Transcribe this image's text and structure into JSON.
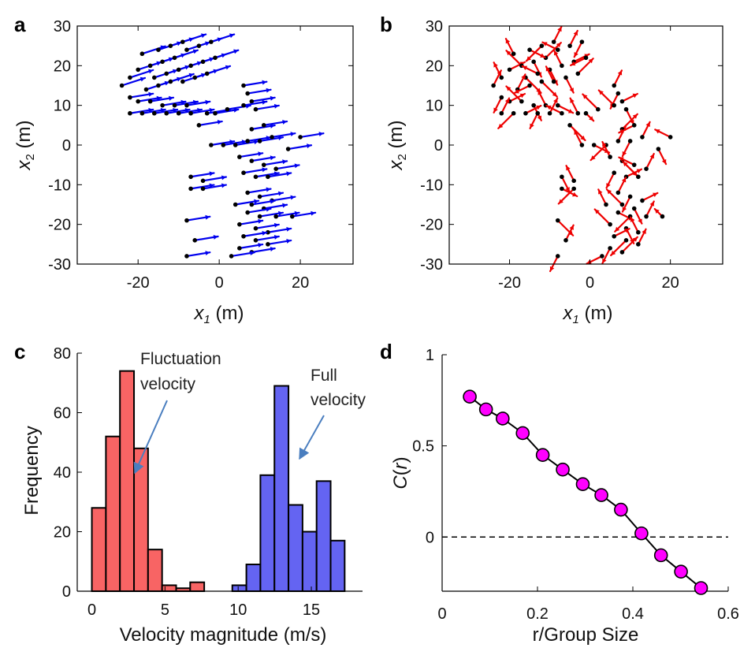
{
  "panels": {
    "a": "a",
    "b": "b",
    "c": "c",
    "d": "d"
  },
  "colors": {
    "full": "#0000ee",
    "fluct": "#ee0000",
    "hist_fluct": "#f86464",
    "hist_full": "#6464f2",
    "marker": "#ff00ff",
    "annotation_arrow": "#4a7ebf"
  },
  "chart_data": [
    {
      "id": "a",
      "type": "scatter",
      "xlabel": "x1 (m)",
      "ylabel": "x2 (m)",
      "xlim": [
        -35,
        33
      ],
      "ylim": [
        -30,
        30
      ],
      "xticks": [
        -20,
        0,
        20
      ],
      "yticks": [
        30,
        20,
        10,
        0,
        -10,
        -20,
        -30
      ],
      "arrow_color": "#0000ee",
      "points": [
        [
          -24,
          15,
          3,
          1
        ],
        [
          -22,
          17,
          3,
          1
        ],
        [
          -20,
          19,
          3,
          1
        ],
        [
          -17,
          20,
          3,
          1
        ],
        [
          -14,
          21,
          3,
          1
        ],
        [
          -11,
          22,
          3,
          1
        ],
        [
          -8,
          24,
          3,
          1
        ],
        [
          -5,
          25,
          3,
          1
        ],
        [
          -2,
          26,
          3,
          1
        ],
        [
          -19,
          23,
          3,
          1
        ],
        [
          -15,
          24,
          3,
          1
        ],
        [
          -12,
          25,
          3,
          1
        ],
        [
          -9,
          26,
          3,
          1
        ],
        [
          -16,
          17,
          3,
          1
        ],
        [
          -13,
          18,
          3,
          1
        ],
        [
          -10,
          19,
          3,
          1
        ],
        [
          -7,
          20,
          3,
          1
        ],
        [
          -4,
          21,
          3,
          1
        ],
        [
          -1,
          22,
          3,
          1
        ],
        [
          -18,
          14,
          3,
          1
        ],
        [
          -15,
          15,
          3,
          1
        ],
        [
          -12,
          16,
          3,
          1
        ],
        [
          -9,
          16,
          3,
          1
        ],
        [
          -6,
          17,
          3,
          1
        ],
        [
          -3,
          18,
          3,
          1
        ],
        [
          -22,
          12,
          3,
          0.5
        ],
        [
          -20,
          11,
          3,
          0.5
        ],
        [
          -17,
          11,
          3,
          0.5
        ],
        [
          -14,
          10,
          3,
          0.5
        ],
        [
          -11,
          10,
          3,
          0.5
        ],
        [
          -8,
          10,
          3,
          0.5
        ],
        [
          -22,
          8,
          3,
          0.5
        ],
        [
          -19,
          8,
          3,
          0.5
        ],
        [
          -16,
          8,
          3,
          0.5
        ],
        [
          -13,
          8,
          3,
          0.5
        ],
        [
          -10,
          8,
          3,
          0.5
        ],
        [
          -7,
          8,
          3,
          0.5
        ],
        [
          -5,
          5,
          3,
          0.5
        ],
        [
          -3,
          8,
          3,
          0.5
        ],
        [
          -1,
          8,
          3,
          0.5
        ],
        [
          2,
          9,
          3,
          0.5
        ],
        [
          6,
          15,
          3,
          0.5
        ],
        [
          7,
          13,
          3,
          0.5
        ],
        [
          8,
          11,
          3,
          0.5
        ],
        [
          6,
          10,
          3,
          0.5
        ],
        [
          9,
          9,
          3,
          0.5
        ],
        [
          -2,
          0,
          3,
          0.5
        ],
        [
          1,
          0,
          3,
          0.5
        ],
        [
          4,
          0,
          3,
          0.5
        ],
        [
          7,
          1,
          3,
          0.5
        ],
        [
          10,
          1,
          3,
          0.5
        ],
        [
          8,
          4,
          3,
          0.5
        ],
        [
          11,
          5,
          3,
          0.5
        ],
        [
          13,
          2,
          3,
          0.5
        ],
        [
          20,
          2,
          3,
          0.5
        ],
        [
          17,
          -1,
          3,
          0.5
        ],
        [
          5,
          -3,
          3,
          0.5
        ],
        [
          8,
          -4,
          3,
          0.5
        ],
        [
          11,
          -5,
          3,
          0.5
        ],
        [
          14,
          -6,
          3,
          0.5
        ],
        [
          6,
          -7,
          3,
          0.5
        ],
        [
          9,
          -8,
          3,
          0.5
        ],
        [
          12,
          -8,
          3,
          0.5
        ],
        [
          -7,
          -8,
          3,
          0.5
        ],
        [
          -4,
          -9,
          3,
          0.5
        ],
        [
          -7,
          -11,
          3,
          0.5
        ],
        [
          -4,
          -11,
          3,
          0.5
        ],
        [
          7,
          -12,
          3,
          0.5
        ],
        [
          10,
          -13,
          3,
          0.5
        ],
        [
          13,
          -14,
          3,
          0.5
        ],
        [
          8,
          -15,
          3,
          0.5
        ],
        [
          11,
          -16,
          3,
          0.5
        ],
        [
          4,
          -15,
          3,
          0.5
        ],
        [
          7,
          -17,
          3,
          0.5
        ],
        [
          10,
          -18,
          3,
          0.5
        ],
        [
          14,
          -18,
          3,
          0.5
        ],
        [
          18,
          -18,
          3,
          0.5
        ],
        [
          -8,
          -19,
          3,
          0.5
        ],
        [
          5,
          -20,
          3,
          0.5
        ],
        [
          9,
          -21,
          3,
          0.5
        ],
        [
          12,
          -22,
          3,
          0.5
        ],
        [
          6,
          -23,
          3,
          0.5
        ],
        [
          9,
          -24,
          3,
          0.5
        ],
        [
          12,
          -25,
          3,
          0.5
        ],
        [
          5,
          -26,
          3,
          0.5
        ],
        [
          8,
          -27,
          3,
          0.5
        ],
        [
          3,
          -28,
          3,
          0.5
        ],
        [
          -6,
          -24,
          3,
          0.5
        ],
        [
          -8,
          -28,
          3,
          0.5
        ]
      ]
    },
    {
      "id": "b",
      "type": "scatter",
      "xlabel": "x1 (m)",
      "ylabel": "x2 (m)",
      "xlim": [
        -35,
        33
      ],
      "ylim": [
        -30,
        30
      ],
      "xticks": [
        -20,
        0,
        20
      ],
      "yticks": [
        30,
        20,
        10,
        0,
        -10,
        -20,
        -30
      ],
      "arrow_color": "#ee0000",
      "points": [
        [
          -24,
          15,
          1,
          2
        ],
        [
          -22,
          17,
          -1,
          2
        ],
        [
          -20,
          19,
          2,
          1
        ],
        [
          -17,
          20,
          -2,
          2
        ],
        [
          -14,
          21,
          1,
          -2
        ],
        [
          -11,
          22,
          2,
          2
        ],
        [
          -8,
          24,
          -2,
          1
        ],
        [
          -5,
          25,
          1,
          2
        ],
        [
          -2,
          26,
          -1,
          -2
        ],
        [
          -19,
          23,
          -1,
          2
        ],
        [
          -15,
          24,
          2,
          -1
        ],
        [
          -12,
          25,
          -2,
          -2
        ],
        [
          -9,
          26,
          1,
          2
        ],
        [
          -16,
          17,
          2,
          -2
        ],
        [
          -13,
          18,
          -2,
          1
        ],
        [
          -10,
          19,
          1,
          -2
        ],
        [
          -7,
          20,
          -1,
          2
        ],
        [
          -4,
          21,
          2,
          1
        ],
        [
          -1,
          22,
          -2,
          -1
        ],
        [
          -18,
          14,
          1,
          2
        ],
        [
          -15,
          15,
          -2,
          -1
        ],
        [
          -12,
          16,
          2,
          -2
        ],
        [
          -9,
          16,
          -1,
          2
        ],
        [
          -6,
          17,
          1,
          -2
        ],
        [
          -3,
          18,
          2,
          2
        ],
        [
          -22,
          12,
          -1,
          -2
        ],
        [
          -20,
          11,
          2,
          1
        ],
        [
          -17,
          11,
          -2,
          2
        ],
        [
          -14,
          10,
          1,
          -2
        ],
        [
          -11,
          10,
          -1,
          2
        ],
        [
          -8,
          10,
          2,
          -1
        ],
        [
          -22,
          8,
          1,
          2
        ],
        [
          -19,
          8,
          -2,
          -2
        ],
        [
          -16,
          8,
          2,
          1
        ],
        [
          -13,
          8,
          -1,
          -2
        ],
        [
          -10,
          8,
          1,
          2
        ],
        [
          -7,
          8,
          -2,
          1
        ],
        [
          -5,
          5,
          2,
          -2
        ],
        [
          -3,
          8,
          -1,
          2
        ],
        [
          -1,
          8,
          1,
          -1
        ],
        [
          2,
          9,
          -2,
          2
        ],
        [
          6,
          15,
          1,
          2
        ],
        [
          7,
          13,
          -1,
          -2
        ],
        [
          8,
          11,
          2,
          1
        ],
        [
          6,
          10,
          -2,
          2
        ],
        [
          9,
          9,
          1,
          -2
        ],
        [
          -2,
          0,
          -1,
          2
        ],
        [
          1,
          0,
          2,
          -1
        ],
        [
          4,
          0,
          -2,
          -2
        ],
        [
          7,
          1,
          1,
          2
        ],
        [
          10,
          1,
          -1,
          -2
        ],
        [
          8,
          4,
          2,
          2
        ],
        [
          11,
          5,
          -2,
          -1
        ],
        [
          13,
          2,
          1,
          2
        ],
        [
          20,
          2,
          -2,
          1
        ],
        [
          17,
          -1,
          1,
          -2
        ],
        [
          5,
          -3,
          -1,
          2
        ],
        [
          8,
          -4,
          2,
          -2
        ],
        [
          11,
          -5,
          -2,
          1
        ],
        [
          14,
          -6,
          1,
          2
        ],
        [
          6,
          -7,
          -1,
          -2
        ],
        [
          9,
          -8,
          2,
          1
        ],
        [
          12,
          -8,
          -2,
          2
        ],
        [
          -7,
          -8,
          1,
          -2
        ],
        [
          -4,
          -9,
          -1,
          2
        ],
        [
          -7,
          -11,
          2,
          -1
        ],
        [
          -4,
          -11,
          -2,
          -2
        ],
        [
          7,
          -12,
          1,
          2
        ],
        [
          10,
          -13,
          -1,
          -2
        ],
        [
          13,
          -14,
          2,
          1
        ],
        [
          8,
          -15,
          -2,
          2
        ],
        [
          11,
          -16,
          1,
          -2
        ],
        [
          4,
          -15,
          -1,
          2
        ],
        [
          7,
          -17,
          2,
          -1
        ],
        [
          10,
          -18,
          -2,
          -2
        ],
        [
          14,
          -18,
          1,
          2
        ],
        [
          18,
          -18,
          -1,
          1
        ],
        [
          -8,
          -19,
          2,
          -2
        ],
        [
          5,
          -20,
          -2,
          2
        ],
        [
          9,
          -21,
          1,
          -2
        ],
        [
          12,
          -22,
          -1,
          2
        ],
        [
          6,
          -23,
          2,
          1
        ],
        [
          9,
          -24,
          -2,
          -2
        ],
        [
          12,
          -25,
          1,
          2
        ],
        [
          5,
          -26,
          -1,
          -2
        ],
        [
          8,
          -27,
          2,
          2
        ],
        [
          3,
          -28,
          -2,
          -1
        ],
        [
          -6,
          -24,
          1,
          2
        ],
        [
          -8,
          -28,
          -1,
          -2
        ]
      ]
    },
    {
      "id": "c",
      "type": "bar",
      "xlabel": "Velocity magnitude (m/s)",
      "ylabel": "Frequency",
      "xlim": [
        -1,
        18.5
      ],
      "ylim": [
        0,
        80
      ],
      "xticks": [
        0,
        5,
        10,
        15
      ],
      "yticks": [
        0,
        20,
        40,
        60,
        80
      ],
      "bin_width": 0.96,
      "series": [
        {
          "name": "Fluctuation velocity",
          "bin_starts": [
            0,
            0.96,
            1.92,
            2.88,
            3.84,
            4.8,
            5.76,
            6.72
          ],
          "values": [
            28,
            52,
            74,
            48,
            14,
            2,
            1,
            3
          ]
        },
        {
          "name": "Full velocity",
          "bin_starts": [
            9.6,
            10.56,
            11.52,
            12.48,
            13.44,
            14.4,
            15.36,
            16.32
          ],
          "values": [
            2,
            9,
            39,
            69,
            29,
            20,
            37,
            17
          ]
        }
      ],
      "annotations": [
        "Fluctuation",
        "velocity",
        "Full",
        "velocity"
      ]
    },
    {
      "id": "d",
      "type": "line",
      "xlabel": "r/Group Size",
      "ylabel": "C(r)",
      "xlim": [
        0,
        0.6
      ],
      "ylim": [
        -0.28,
        1
      ],
      "xticks": [
        0,
        0.2,
        0.4,
        0.6
      ],
      "yticks": [
        1,
        0.5,
        0
      ],
      "x": [
        0.058,
        0.092,
        0.127,
        0.169,
        0.211,
        0.253,
        0.295,
        0.334,
        0.375,
        0.418,
        0.459,
        0.501,
        0.543
      ],
      "y": [
        0.77,
        0.7,
        0.65,
        0.57,
        0.45,
        0.37,
        0.29,
        0.23,
        0.15,
        0.02,
        -0.1,
        -0.19,
        -0.28
      ],
      "reference_line_y": 0
    }
  ]
}
